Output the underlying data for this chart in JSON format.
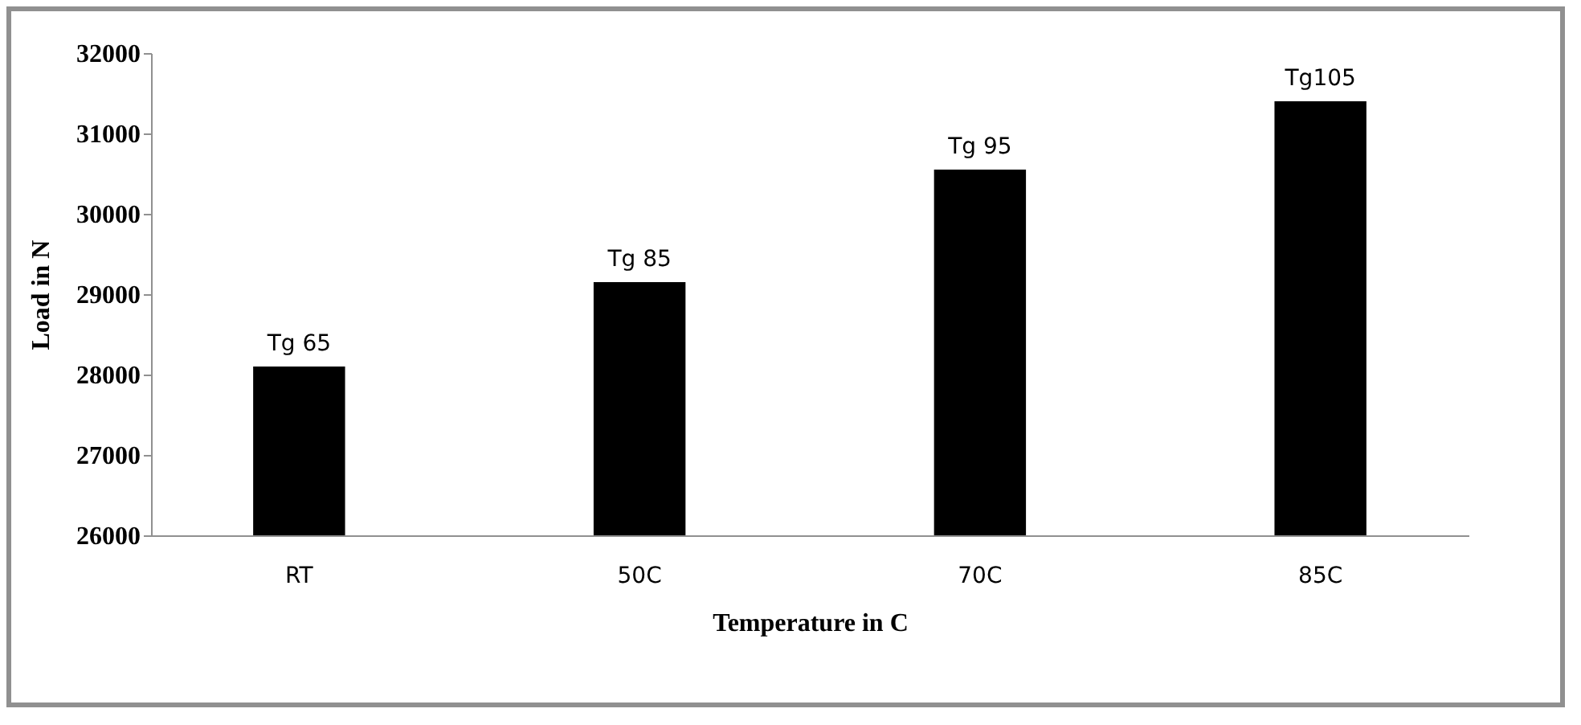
{
  "chart_data": {
    "type": "bar",
    "xlabel": "Temperature in C",
    "ylabel": "Load in N",
    "categories": [
      "RT",
      "50C",
      "70C",
      "85C"
    ],
    "values": [
      28100,
      29150,
      30550,
      31400
    ],
    "value_labels": [
      "Tg 65",
      "Tg 85",
      "Tg 95",
      "Tg105"
    ],
    "color": "#000000",
    "ylim": [
      26000,
      32000
    ],
    "yticks": [
      26000,
      27000,
      28000,
      29000,
      30000,
      31000,
      32000
    ],
    "grid": false
  }
}
